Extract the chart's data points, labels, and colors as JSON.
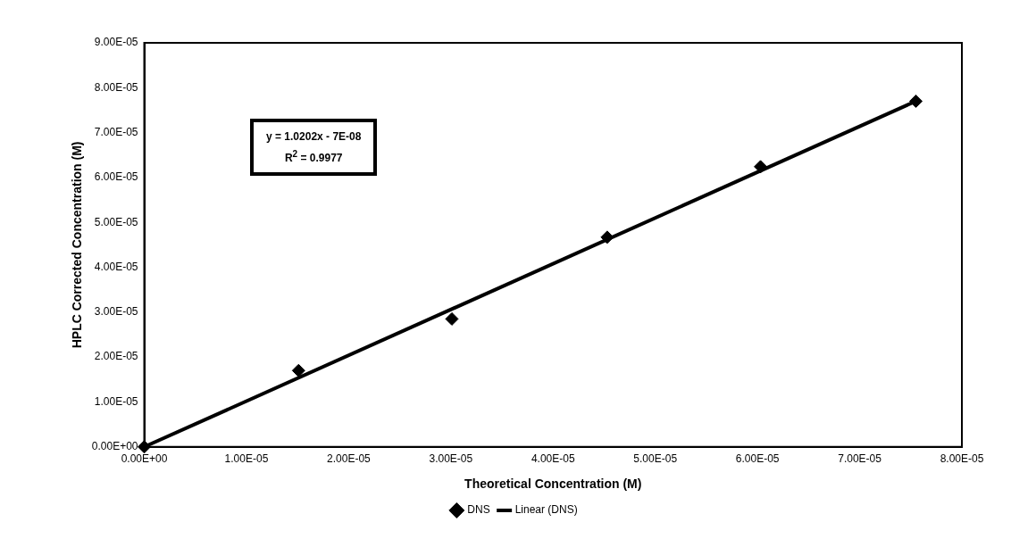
{
  "chart_data": {
    "type": "scatter",
    "xlabel": "Theoretical Concentration (M)",
    "ylabel": "HPLC Corrected Concentration (M)",
    "xlim": [
      0,
      8e-05
    ],
    "ylim": [
      0,
      9e-05
    ],
    "xticks": [
      {
        "value": 0,
        "label": "0.00E+00"
      },
      {
        "value": 1e-05,
        "label": "1.00E-05"
      },
      {
        "value": 2e-05,
        "label": "2.00E-05"
      },
      {
        "value": 3e-05,
        "label": "3.00E-05"
      },
      {
        "value": 4e-05,
        "label": "4.00E-05"
      },
      {
        "value": 5e-05,
        "label": "5.00E-05"
      },
      {
        "value": 6e-05,
        "label": "6.00E-05"
      },
      {
        "value": 7e-05,
        "label": "7.00E-05"
      },
      {
        "value": 8e-05,
        "label": "8.00E-05"
      }
    ],
    "yticks": [
      {
        "value": 0,
        "label": "0.00E+00"
      },
      {
        "value": 1e-05,
        "label": "1.00E-05"
      },
      {
        "value": 2e-05,
        "label": "2.00E-05"
      },
      {
        "value": 3e-05,
        "label": "3.00E-05"
      },
      {
        "value": 4e-05,
        "label": "4.00E-05"
      },
      {
        "value": 5e-05,
        "label": "5.00E-05"
      },
      {
        "value": 6e-05,
        "label": "6.00E-05"
      },
      {
        "value": 7e-05,
        "label": "7.00E-05"
      },
      {
        "value": 8e-05,
        "label": "8.00E-05"
      },
      {
        "value": 9e-05,
        "label": "9.00E-05"
      }
    ],
    "series": [
      {
        "name": "DNS",
        "color": "#000000",
        "marker": "diamond",
        "x": [
          0,
          1.51e-05,
          3.01e-05,
          4.53e-05,
          6.03e-05,
          7.55e-05
        ],
        "values": [
          0,
          1.7e-05,
          2.85e-05,
          4.67e-05,
          6.24e-05,
          7.7e-05
        ]
      },
      {
        "name": "Linear (DNS)",
        "type": "line",
        "color": "#000000",
        "marker": "none",
        "line_style": "solid",
        "x": [
          0,
          7.55e-05
        ],
        "values": [
          0,
          7.7e-05
        ]
      }
    ],
    "annotations": [
      "y = 1.0202x - 7E-08",
      "R$^{2}$ = 0.9977"
    ],
    "grid": false,
    "legend": "bottom"
  }
}
